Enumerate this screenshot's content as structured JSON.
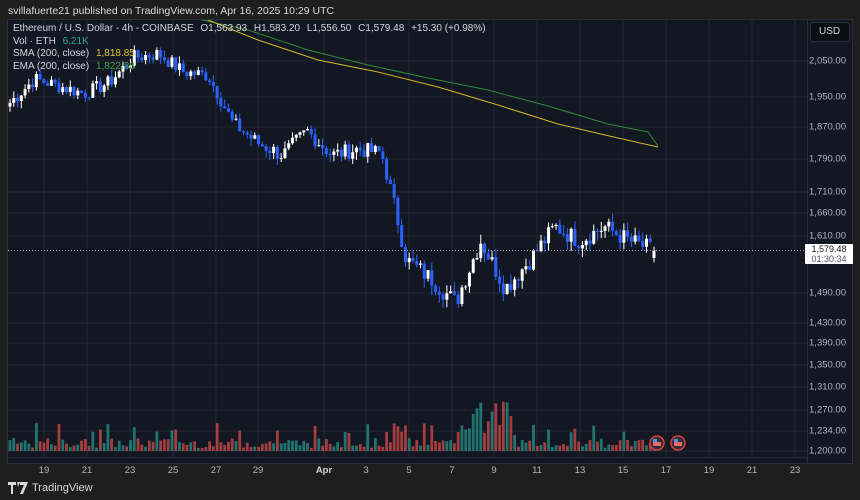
{
  "publisher_line": "svillafuerte21 published on TradingView.com, Apr 16, 2025 10:29 UTC",
  "legend": {
    "symbol_line": "Ethereum / U.S. Dollar - 4h - COINBASE",
    "open": "O1,563.93",
    "high": "H1,583.20",
    "low": "L1,556.50",
    "close": "C1,579.48",
    "change": "+15.30 (+0.98%)",
    "vol_label": "Vol · ETH",
    "vol_value": "6.21K",
    "sma_label": "SMA (200, close)",
    "sma_value": "1,818.85",
    "ema_label": "EMA (200, close)",
    "ema_value": "1,822.88"
  },
  "price_axis": {
    "currency_button": "USD",
    "ticks": [
      "2,050.00",
      "1,950.00",
      "1,870.00",
      "1,790.00",
      "1,710.00",
      "1,660.00",
      "1,610.00",
      "1,490.00",
      "1,430.00",
      "1,390.00",
      "1,350.00",
      "1,310.00",
      "1,270.00",
      "1,234.00",
      "1,200.00"
    ],
    "last_price": "1,579.48",
    "countdown": "01:30:34"
  },
  "time_axis": {
    "ticks": [
      "19",
      "21",
      "23",
      "25",
      "27",
      "29",
      "Apr",
      "3",
      "5",
      "7",
      "9",
      "11",
      "13",
      "15",
      "17",
      "19",
      "21",
      "23"
    ]
  },
  "footer": {
    "brand": "TradingView"
  },
  "colors": {
    "background": "#131722",
    "up_candle": "#ffffff",
    "down_candle": "#2962ff",
    "sma": "#d4b82b",
    "ema": "#2e8b3c",
    "vol_up": "#26a69a",
    "vol_down": "#ef5350"
  },
  "chart_data": {
    "type": "candlestick",
    "title": "Ethereum / U.S. Dollar - 4h - COINBASE",
    "xlabel": "",
    "ylabel": "USD",
    "x_ticks": [
      "19",
      "21",
      "23",
      "25",
      "27",
      "29",
      "Apr",
      "3",
      "5",
      "7",
      "9",
      "11",
      "13",
      "15",
      "17",
      "19",
      "21",
      "23"
    ],
    "y_ticks": [
      2050,
      1950,
      1870,
      1790,
      1710,
      1660,
      1610,
      1490,
      1430,
      1390,
      1350,
      1310,
      1270,
      1234,
      1200
    ],
    "ylim": [
      1200,
      2100
    ],
    "grid": true,
    "last": {
      "open": 1563.93,
      "high": 1583.2,
      "low": 1556.5,
      "close": 1579.48,
      "change": 15.3,
      "change_pct": 0.98
    },
    "approx_closes": [
      {
        "date": "Mar 18",
        "close": 1935
      },
      {
        "date": "Mar 19",
        "close": 2000
      },
      {
        "date": "Mar 20",
        "close": 1980
      },
      {
        "date": "Mar 21",
        "close": 1960
      },
      {
        "date": "Mar 23",
        "close": 1990
      },
      {
        "date": "Mar 24",
        "close": 2060
      },
      {
        "date": "Mar 25",
        "close": 2070
      },
      {
        "date": "Mar 26",
        "close": 2020
      },
      {
        "date": "Mar 27",
        "close": 2010
      },
      {
        "date": "Mar 28",
        "close": 1880
      },
      {
        "date": "Mar 29",
        "close": 1830
      },
      {
        "date": "Mar 30",
        "close": 1800
      },
      {
        "date": "Apr 1",
        "close": 1860
      },
      {
        "date": "Apr 2",
        "close": 1800
      },
      {
        "date": "Apr 3",
        "close": 1815
      },
      {
        "date": "Apr 5",
        "close": 1805
      },
      {
        "date": "Apr 6",
        "close": 1560
      },
      {
        "date": "Apr 7",
        "close": 1520
      },
      {
        "date": "Apr 8",
        "close": 1470
      },
      {
        "date": "Apr 9",
        "close": 1600
      },
      {
        "date": "Apr 10",
        "close": 1500
      },
      {
        "date": "Apr 11",
        "close": 1560
      },
      {
        "date": "Apr 12",
        "close": 1630
      },
      {
        "date": "Apr 13",
        "close": 1600
      },
      {
        "date": "Apr 14",
        "close": 1630
      },
      {
        "date": "Apr 15",
        "close": 1600
      },
      {
        "date": "Apr 16",
        "close": 1579.48
      }
    ],
    "series": [
      {
        "name": "SMA (200, close)",
        "last": 1818.85,
        "color": "#d4b82b"
      },
      {
        "name": "EMA (200, close)",
        "last": 1822.88,
        "color": "#2e8b3c"
      },
      {
        "name": "Vol · ETH",
        "last": "6.21K"
      }
    ]
  }
}
